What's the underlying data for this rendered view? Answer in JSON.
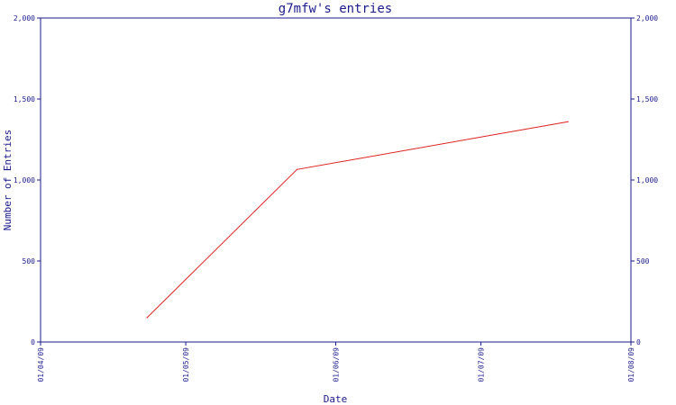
{
  "chart_data": {
    "type": "line",
    "title": "g7mfw's entries",
    "xlabel": "Date",
    "ylabel": "Number of Entries",
    "x_ticks": [
      "01/04/09",
      "01/05/09",
      "01/06/09",
      "01/07/09",
      "01/08/09"
    ],
    "y_ticks": [
      "0",
      "500",
      "1,000",
      "1,500",
      "2,000"
    ],
    "ylim": [
      0,
      2000
    ],
    "xlim": [
      "2009-04-01",
      "2009-08-01"
    ],
    "series": [
      {
        "points": [
          {
            "x": "2009-04-23",
            "y": 150
          },
          {
            "x": "2009-05-24",
            "y": 1065
          },
          {
            "x": "2009-07-19",
            "y": 1360
          }
        ]
      }
    ],
    "colors": {
      "axis": "#1a1a8c",
      "line": "#e02020"
    }
  }
}
